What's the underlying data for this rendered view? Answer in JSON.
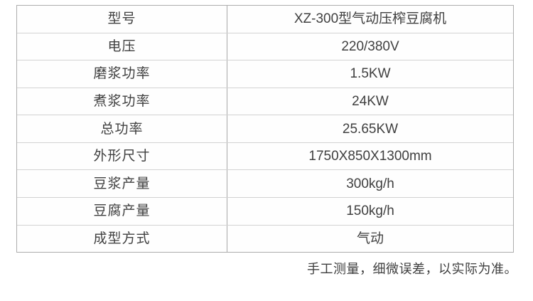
{
  "colors": {
    "background": "#ffffff",
    "outer_border": "#adadad",
    "column_divider": "#a6a6a6",
    "row_line": "#d2d2d2",
    "text": "#404040"
  },
  "spec_table": {
    "rows": [
      {
        "label": "型号",
        "value": "XZ-300型气动压榨豆腐机"
      },
      {
        "label": "电压",
        "value": "220/380V"
      },
      {
        "label": "磨浆功率",
        "value": "1.5KW"
      },
      {
        "label": "煮浆功率",
        "value": "24KW"
      },
      {
        "label": "总功率",
        "value": "25.65KW"
      },
      {
        "label": "外形尺寸",
        "value": "1750X850X1300mm"
      },
      {
        "label": "豆浆产量",
        "value": "300kg/h"
      },
      {
        "label": "豆腐产量",
        "value": "150kg/h"
      },
      {
        "label": "成型方式",
        "value": "气动"
      }
    ]
  },
  "footer": {
    "note": "手工测量，细微误差，以实际为准。"
  }
}
